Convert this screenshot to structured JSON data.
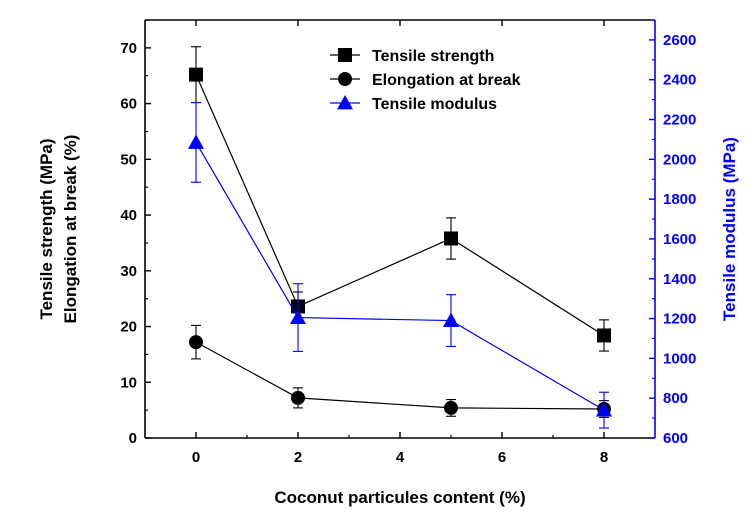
{
  "chart_data": {
    "type": "line",
    "xlabel": "Coconut particules content (%)",
    "ylabel_left": [
      "Tensile strength (MPa)",
      "Elongation at break (%)"
    ],
    "ylabel_right": "Tensile modulus (MPa)",
    "xlim": [
      -1,
      9
    ],
    "ylim_left": [
      0,
      75
    ],
    "ylim_right": [
      600,
      2700
    ],
    "xticks": [
      0,
      2,
      4,
      6,
      8
    ],
    "yticks_left": [
      0,
      10,
      20,
      30,
      40,
      50,
      60,
      70
    ],
    "yticks_right": [
      600,
      800,
      1000,
      1200,
      1400,
      1600,
      1800,
      2000,
      2200,
      2400,
      2600
    ],
    "legend_position": "top-center",
    "grid": false,
    "series": [
      {
        "name": "Tensile strength",
        "axis": "left",
        "marker": "square",
        "color": "#000000",
        "x": [
          0,
          2,
          5,
          8
        ],
        "y": [
          65.2,
          23.6,
          35.8,
          18.4
        ],
        "err": [
          5.0,
          2.6,
          3.7,
          2.8
        ]
      },
      {
        "name": "Elongation at break",
        "axis": "left",
        "marker": "circle",
        "color": "#000000",
        "x": [
          0,
          2,
          5,
          8
        ],
        "y": [
          17.2,
          7.2,
          5.4,
          5.2
        ],
        "err": [
          3.0,
          1.8,
          1.5,
          1.5
        ]
      },
      {
        "name": "Tensile modulus",
        "axis": "right",
        "marker": "triangle",
        "color": "#0000ff",
        "x": [
          0,
          2,
          5,
          8
        ],
        "y": [
          2085,
          1205,
          1190,
          740
        ],
        "err": [
          200,
          170,
          130,
          90
        ]
      }
    ]
  }
}
